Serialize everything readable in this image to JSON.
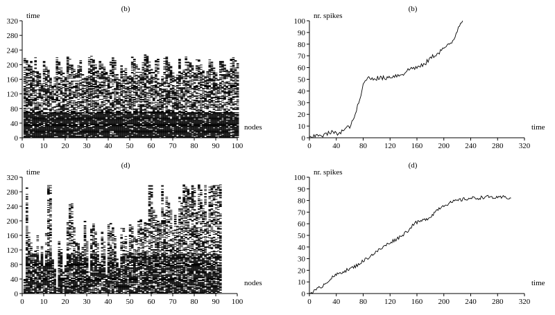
{
  "chart_data": [
    {
      "id": "raster_top",
      "type": "scatter",
      "title": "(b)",
      "xlabel": "nodes",
      "ylabel": "time",
      "xlim": [
        0,
        100
      ],
      "ylim": [
        0,
        320
      ],
      "xticks": [
        0,
        10,
        20,
        30,
        40,
        50,
        60,
        70,
        80,
        90,
        100
      ],
      "yticks": [
        0,
        40,
        80,
        120,
        160,
        200,
        240,
        280,
        320
      ],
      "colors": {
        "marks": "#000000",
        "axes": "#000000"
      },
      "raster": {
        "nodes": 100,
        "max_time": [
          218,
          215,
          205,
          210,
          188,
          220,
          182,
          175,
          150,
          212,
          195,
          185,
          170,
          142,
          165,
          220,
          210,
          198,
          178,
          168,
          222,
          215,
          200,
          188,
          175,
          205,
          215,
          180,
          172,
          168,
          222,
          225,
          215,
          200,
          190,
          215,
          205,
          195,
          180,
          172,
          208,
          220,
          212,
          175,
          165,
          200,
          185,
          190,
          178,
          172,
          222,
          218,
          200,
          190,
          185,
          205,
          228,
          225,
          210,
          188,
          180,
          212,
          215,
          150,
          170,
          218,
          222,
          208,
          195,
          180,
          168,
          172,
          215,
          178,
          185,
          222,
          210,
          205,
          198,
          178,
          220,
          215,
          202,
          188,
          170,
          182,
          215,
          210,
          195,
          180,
          165,
          218,
          210,
          200,
          190,
          182,
          215,
          220,
          212,
          205
        ],
        "dense_below": 70,
        "density_high": 0.9,
        "density_low": 0.55
      }
    },
    {
      "id": "spikes_top",
      "type": "line",
      "title": "(b)",
      "xlabel": "time",
      "ylabel": "nr. spikes",
      "xlim": [
        0,
        320
      ],
      "ylim": [
        0,
        100
      ],
      "xticks": [
        0,
        40,
        80,
        120,
        160,
        200,
        240,
        280,
        320
      ],
      "yticks": [
        0,
        10,
        20,
        30,
        40,
        50,
        60,
        70,
        80,
        90,
        100
      ],
      "colors": {
        "line": "#000000"
      },
      "x": [
        0,
        5,
        10,
        15,
        20,
        25,
        30,
        35,
        40,
        45,
        50,
        55,
        60,
        65,
        70,
        75,
        80,
        85,
        90,
        95,
        100,
        110,
        120,
        125,
        130,
        135,
        140,
        145,
        150,
        155,
        160,
        165,
        170,
        175,
        180,
        185,
        190,
        195,
        200,
        205,
        210,
        215,
        220,
        225,
        228
      ],
      "y": [
        0,
        0,
        2,
        3,
        2,
        3,
        4,
        5,
        3,
        5,
        6,
        8,
        10,
        14,
        24,
        32,
        45,
        51,
        51,
        51,
        51,
        51,
        52,
        53,
        53,
        54,
        55,
        57,
        59,
        60,
        60,
        61,
        62,
        65,
        68,
        70,
        72,
        74,
        77,
        78,
        80,
        84,
        92,
        99,
        100
      ]
    },
    {
      "id": "raster_bottom",
      "type": "scatter",
      "title": "(d)",
      "xlabel": "nodes",
      "ylabel": "time",
      "xlim": [
        0,
        100
      ],
      "ylim": [
        0,
        320
      ],
      "xticks": [
        0,
        10,
        20,
        30,
        40,
        50,
        60,
        70,
        80,
        90,
        100
      ],
      "yticks": [
        0,
        40,
        80,
        120,
        160,
        200,
        240,
        280,
        320
      ],
      "colors": {
        "marks": "#000000",
        "axes": "#000000"
      },
      "raster": {
        "nodes": 92,
        "max_time": [
          40,
          300,
          170,
          140,
          110,
          120,
          160,
          90,
          130,
          75,
          165,
          300,
          300,
          95,
          70,
          15,
          150,
          125,
          60,
          80,
          195,
          245,
          250,
          190,
          145,
          140,
          115,
          130,
          210,
          145,
          60,
          180,
          195,
          170,
          140,
          85,
          170,
          150,
          55,
          200,
          195,
          185,
          160,
          95,
          70,
          180,
          180,
          165,
          120,
          190,
          185,
          155,
          150,
          200,
          205,
          180,
          195,
          195,
          300,
          300,
          230,
          215,
          200,
          195,
          300,
          220,
          265,
          250,
          230,
          175,
          215,
          185,
          265,
          250,
          300,
          300,
          290,
          280,
          300,
          290,
          225,
          300,
          290,
          250,
          300,
          205,
          295,
          300,
          300,
          300,
          300,
          300
        ],
        "dense_below": 110,
        "density_high": 0.75,
        "density_low": 0.45
      }
    },
    {
      "id": "spikes_bottom",
      "type": "line",
      "title": "(d)",
      "xlabel": "time",
      "ylabel": "nr. spikes",
      "xlim": [
        0,
        320
      ],
      "ylim": [
        0,
        100
      ],
      "xticks": [
        0,
        40,
        80,
        120,
        160,
        200,
        240,
        280,
        320
      ],
      "yticks": [
        0,
        10,
        20,
        30,
        40,
        50,
        60,
        70,
        80,
        90,
        100
      ],
      "colors": {
        "line": "#000000"
      },
      "x": [
        0,
        10,
        20,
        30,
        40,
        50,
        60,
        70,
        80,
        90,
        100,
        110,
        120,
        130,
        140,
        150,
        155,
        160,
        170,
        180,
        190,
        200,
        210,
        220,
        230,
        240,
        250,
        260,
        270,
        280,
        290,
        300
      ],
      "y": [
        0,
        3,
        7,
        12,
        16,
        19,
        21,
        24,
        28,
        32,
        36,
        40,
        44,
        47,
        51,
        56,
        60,
        61,
        63,
        66,
        72,
        76,
        78,
        80,
        81,
        82,
        82,
        83,
        83,
        82,
        83,
        82
      ]
    }
  ]
}
